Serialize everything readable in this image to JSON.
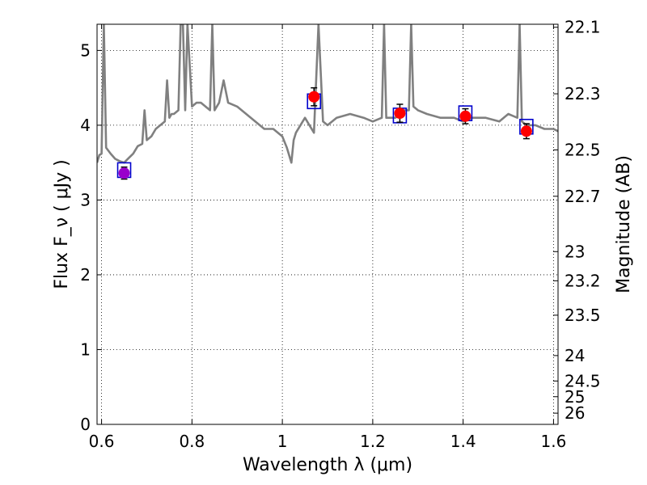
{
  "chart_data": {
    "type": "scatter",
    "title": "",
    "xlabel": "Wavelength  λ (μm)",
    "ylabel": "Flux  F_ν  ( μJy )",
    "ylabel_right": "Magnitude (AB)",
    "xlim": [
      0.59,
      1.61
    ],
    "ylim": [
      0,
      5.35
    ],
    "grid": true,
    "x_ticks": [
      0.6,
      0.8,
      1.0,
      1.2,
      1.4,
      1.6
    ],
    "x_tick_labels": [
      "0.6",
      "0.8",
      "1",
      "1.2",
      "1.4",
      "1.6"
    ],
    "y_ticks": [
      0,
      1,
      2,
      3,
      4,
      5
    ],
    "y_tick_labels": [
      "0",
      "1",
      "2",
      "3",
      "4",
      "5"
    ],
    "right_axis_ticks": [
      {
        "label": "22.1",
        "flux": 5.31
      },
      {
        "label": "22.3",
        "flux": 4.42
      },
      {
        "label": "22.5",
        "flux": 3.67
      },
      {
        "label": "22.7",
        "flux": 3.05
      },
      {
        "label": "23",
        "flux": 2.31
      },
      {
        "label": "23.2",
        "flux": 1.92
      },
      {
        "label": "23.5",
        "flux": 1.46
      },
      {
        "label": "24",
        "flux": 0.92
      },
      {
        "label": "24.5",
        "flux": 0.58
      },
      {
        "label": "25",
        "flux": 0.37
      },
      {
        "label": "26",
        "flux": 0.15
      }
    ],
    "colors": {
      "spectrum": "#808080",
      "observed": "#ff0000",
      "observed_first": "#9900cc",
      "model_box": "#0000cc",
      "errorbar": "#000000"
    },
    "series": [
      {
        "kind": "spectrum",
        "x": [
          0.59,
          0.595,
          0.6,
          0.605,
          0.61,
          0.62,
          0.63,
          0.64,
          0.65,
          0.66,
          0.67,
          0.68,
          0.69,
          0.695,
          0.7,
          0.71,
          0.72,
          0.73,
          0.74,
          0.745,
          0.75,
          0.755,
          0.76,
          0.77,
          0.775,
          0.78,
          0.785,
          0.79,
          0.8,
          0.81,
          0.82,
          0.83,
          0.84,
          0.845,
          0.85,
          0.86,
          0.87,
          0.88,
          0.9,
          0.92,
          0.94,
          0.96,
          0.98,
          1.0,
          1.01,
          1.02,
          1.025,
          1.03,
          1.04,
          1.05,
          1.06,
          1.07,
          1.08,
          1.09,
          1.1,
          1.12,
          1.15,
          1.18,
          1.2,
          1.22,
          1.225,
          1.23,
          1.25,
          1.27,
          1.28,
          1.285,
          1.29,
          1.3,
          1.32,
          1.35,
          1.38,
          1.4,
          1.42,
          1.45,
          1.48,
          1.5,
          1.52,
          1.525,
          1.53,
          1.54,
          1.56,
          1.58,
          1.6,
          1.61
        ],
        "y": [
          3.5,
          3.6,
          3.62,
          5.35,
          3.7,
          3.62,
          3.55,
          3.52,
          3.5,
          3.56,
          3.62,
          3.72,
          3.75,
          4.2,
          3.8,
          3.85,
          3.95,
          4.0,
          4.05,
          4.6,
          4.1,
          4.15,
          4.15,
          4.2,
          5.35,
          5.35,
          4.2,
          5.35,
          4.25,
          4.3,
          4.3,
          4.25,
          4.2,
          5.35,
          4.2,
          4.3,
          4.6,
          4.3,
          4.25,
          4.15,
          4.05,
          3.95,
          3.95,
          3.85,
          3.7,
          3.5,
          3.8,
          3.9,
          4.0,
          4.1,
          4.0,
          3.9,
          5.35,
          4.05,
          4.0,
          4.1,
          4.15,
          4.1,
          4.05,
          4.1,
          5.35,
          4.1,
          4.1,
          4.2,
          4.2,
          5.35,
          4.25,
          4.2,
          4.15,
          4.1,
          4.1,
          4.05,
          4.1,
          4.1,
          4.05,
          4.15,
          4.1,
          5.35,
          4.05,
          4.0,
          4.0,
          3.95,
          3.95,
          3.92
        ]
      },
      {
        "kind": "model_boxes",
        "x": [
          0.65,
          1.07,
          1.26,
          1.405,
          1.54
        ],
        "y": [
          3.4,
          4.32,
          4.13,
          4.16,
          3.98
        ]
      },
      {
        "kind": "observed",
        "x": [
          0.65,
          1.07,
          1.26,
          1.405,
          1.54
        ],
        "y": [
          3.36,
          4.38,
          4.16,
          4.12,
          3.92
        ],
        "yerr": [
          0.08,
          0.12,
          0.12,
          0.1,
          0.1
        ]
      }
    ]
  }
}
